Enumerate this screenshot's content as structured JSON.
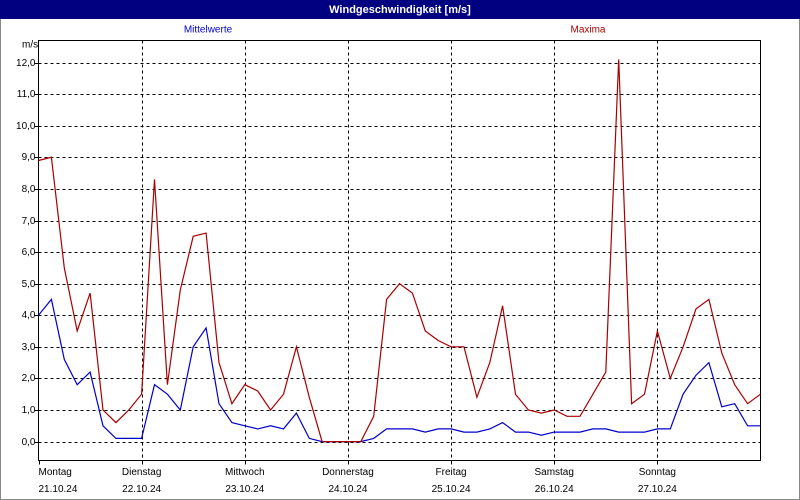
{
  "chart_data": {
    "type": "line",
    "title": "Windgeschwindigkeit [m/s]",
    "y_label": "m/s",
    "days": [
      {
        "weekday": "Montag",
        "date": "21.10.24"
      },
      {
        "weekday": "Dienstag",
        "date": "22.10.24"
      },
      {
        "weekday": "Mittwoch",
        "date": "23.10.24"
      },
      {
        "weekday": "Donnerstag",
        "date": "24.10.24"
      },
      {
        "weekday": "Freitag",
        "date": "25.10.24"
      },
      {
        "weekday": "Samstag",
        "date": "26.10.24"
      },
      {
        "weekday": "Sonntag",
        "date": "27.10.24"
      }
    ],
    "series": [
      {
        "name": "Mittelwerte",
        "color": "#0000cc",
        "values": [
          4.0,
          4.5,
          2.6,
          1.8,
          2.2,
          0.5,
          0.1,
          0.1,
          0.1,
          1.8,
          1.5,
          1.0,
          3.0,
          3.6,
          1.2,
          0.6,
          0.5,
          0.4,
          0.5,
          0.4,
          0.9,
          0.1,
          0.0,
          0.0,
          0.0,
          0.0,
          0.1,
          0.4,
          0.4,
          0.4,
          0.3,
          0.4,
          0.4,
          0.3,
          0.3,
          0.4,
          0.6,
          0.3,
          0.3,
          0.2,
          0.3,
          0.3,
          0.3,
          0.4,
          0.4,
          0.3,
          0.3,
          0.3,
          0.4,
          0.4,
          1.5,
          2.1,
          2.5,
          1.1,
          1.2,
          0.5,
          0.5
        ]
      },
      {
        "name": "Maxima",
        "color": "#aa0000",
        "values": [
          8.9,
          9.0,
          5.5,
          3.5,
          4.7,
          1.0,
          0.6,
          1.0,
          1.5,
          8.3,
          1.8,
          4.8,
          6.5,
          6.6,
          2.5,
          1.2,
          1.8,
          1.6,
          1.0,
          1.5,
          3.0,
          1.4,
          0.0,
          0.0,
          0.0,
          0.0,
          0.8,
          4.5,
          5.0,
          4.7,
          3.5,
          3.2,
          3.0,
          3.0,
          1.4,
          2.5,
          4.3,
          1.5,
          1.0,
          0.9,
          1.0,
          0.8,
          0.8,
          1.5,
          2.2,
          12.1,
          1.2,
          1.5,
          3.5,
          2.0,
          3.0,
          4.2,
          4.5,
          2.8,
          1.8,
          1.2,
          1.5
        ]
      }
    ],
    "ylim": [
      -0.6,
      12.7
    ],
    "yticks": [
      {
        "value": 0,
        "label": "0,0"
      },
      {
        "value": 1,
        "label": "1,0"
      },
      {
        "value": 2,
        "label": "2,0"
      },
      {
        "value": 3,
        "label": "3,0"
      },
      {
        "value": 4,
        "label": "4,0"
      },
      {
        "value": 5,
        "label": "5,0"
      },
      {
        "value": 6,
        "label": "6,0"
      },
      {
        "value": 7,
        "label": "7,0"
      },
      {
        "value": 8,
        "label": "8,0"
      },
      {
        "value": 9,
        "label": "9,0"
      },
      {
        "value": 10,
        "label": "10,0"
      },
      {
        "value": 11,
        "label": "11,0"
      },
      {
        "value": 12,
        "label": "12,0"
      }
    ],
    "grid": true
  }
}
